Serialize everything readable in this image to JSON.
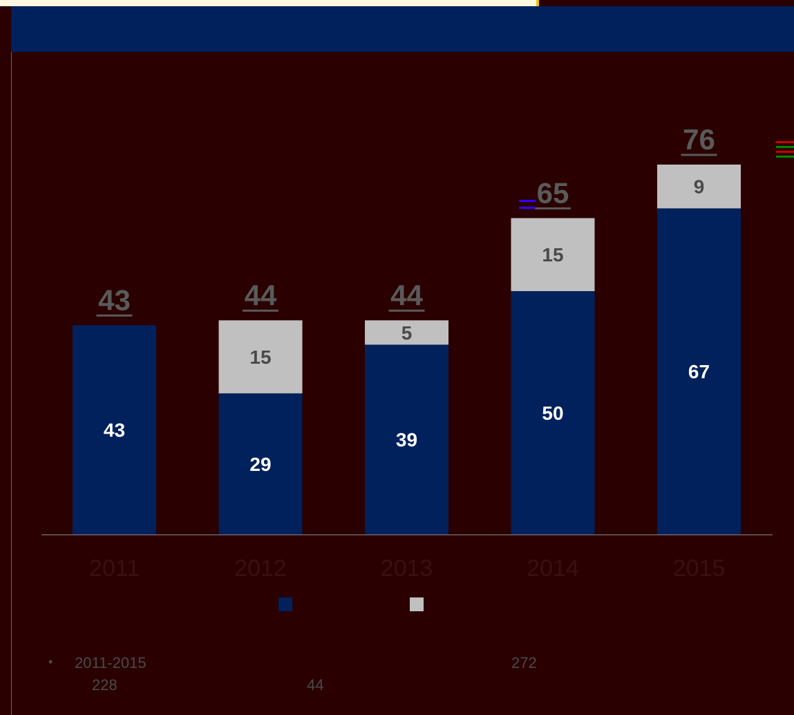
{
  "colors": {
    "background": "#2a0000",
    "header": "#00215b",
    "series_primary": "#00215b",
    "series_secondary": "#c0c0c0",
    "total_label": "#5a5a5a",
    "year_label": "#3a1010",
    "bullet_text": "#4a4a4a"
  },
  "chart_data": {
    "type": "bar",
    "stacked": true,
    "categories": [
      "2011",
      "2012",
      "2013",
      "2014",
      "2015"
    ],
    "series": [
      {
        "values": [
          43,
          29,
          39,
          50,
          67
        ],
        "color": "#00215b"
      },
      {
        "values": [
          0,
          15,
          5,
          15,
          9
        ],
        "color": "#c0c0c0"
      }
    ],
    "totals": [
      43,
      44,
      44,
      65,
      76
    ],
    "ylim": [
      0,
      80
    ],
    "grid": false,
    "legend": "bottom"
  },
  "notes": {
    "bullet_symbol": "•",
    "line1_a": "2011-2015",
    "line1_b": "272",
    "line2_a": "228",
    "line2_b": "44"
  }
}
